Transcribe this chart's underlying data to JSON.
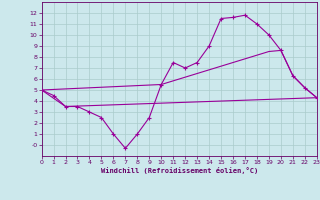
{
  "background_color": "#cce8ec",
  "grid_color": "#aacccc",
  "line_color": "#990099",
  "xlabel": "Windchill (Refroidissement éolien,°C)",
  "ylim": [
    -1,
    13
  ],
  "xlim": [
    0,
    23
  ],
  "yticks": [
    0,
    1,
    2,
    3,
    4,
    5,
    6,
    7,
    8,
    9,
    10,
    11,
    12
  ],
  "xticks": [
    0,
    1,
    2,
    3,
    4,
    5,
    6,
    7,
    8,
    9,
    10,
    11,
    12,
    13,
    14,
    15,
    16,
    17,
    18,
    19,
    20,
    21,
    22,
    23
  ],
  "line1_x": [
    0,
    1,
    2,
    3,
    4,
    5,
    6,
    7,
    8,
    9,
    10,
    11,
    12,
    13,
    14,
    15,
    16,
    17,
    18,
    19,
    20,
    21,
    22,
    23
  ],
  "line1_y": [
    5.0,
    4.5,
    3.5,
    3.5,
    3.0,
    2.5,
    1.0,
    -0.3,
    1.0,
    2.5,
    5.5,
    7.5,
    7.0,
    7.5,
    9.0,
    11.5,
    11.6,
    11.8,
    11.0,
    10.0,
    8.6,
    6.3,
    5.2,
    4.3
  ],
  "line2_x": [
    0,
    2,
    23
  ],
  "line2_y": [
    5.0,
    3.5,
    4.3
  ],
  "line3_x": [
    0,
    10,
    19,
    20,
    21,
    22,
    23
  ],
  "line3_y": [
    5.0,
    5.5,
    8.5,
    8.6,
    6.3,
    5.2,
    4.3
  ]
}
